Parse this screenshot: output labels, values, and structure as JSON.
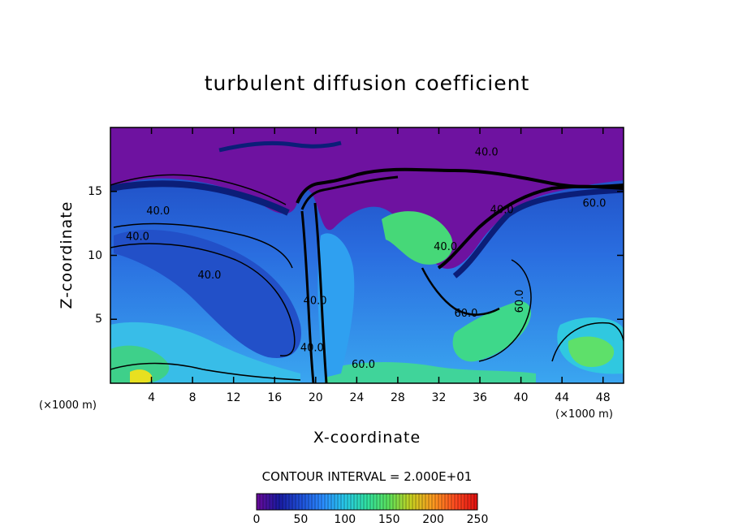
{
  "chart_data": {
    "type": "heatmap",
    "title": "turbulent diffusion coefficient",
    "xlabel": "X-coordinate",
    "ylabel": "Z-coordinate",
    "x_unit": "(×1000 m)",
    "z_unit": "(×1000 m)",
    "xlim": [
      0,
      50
    ],
    "ylim": [
      0,
      20
    ],
    "x_ticks": [
      "4",
      "8",
      "12",
      "16",
      "20",
      "24",
      "28",
      "32",
      "36",
      "40",
      "44",
      "48"
    ],
    "y_ticks": [
      "5",
      "10",
      "15"
    ],
    "contour_interval_text": "CONTOUR INTERVAL = 2.000E+01",
    "contour_labels": [
      "40.0",
      "40.0",
      "40.0",
      "40.0",
      "40.0",
      "40.0",
      "60.0",
      "60.0",
      "60.0",
      "60.0",
      "40.0",
      "40.0"
    ],
    "colorbar": {
      "min": 0,
      "max": 250,
      "tick_labels": [
        "0",
        "50",
        "100",
        "150",
        "200",
        "250"
      ],
      "colors": [
        "#6a0a9a",
        "#1a1aa0",
        "#1e4fd8",
        "#2a8cff",
        "#27c8e8",
        "#30e0a0",
        "#5ce05a",
        "#c8d020",
        "#ff9a20",
        "#ff4a20",
        "#e01010"
      ]
    },
    "grid": false,
    "legend": "none"
  }
}
